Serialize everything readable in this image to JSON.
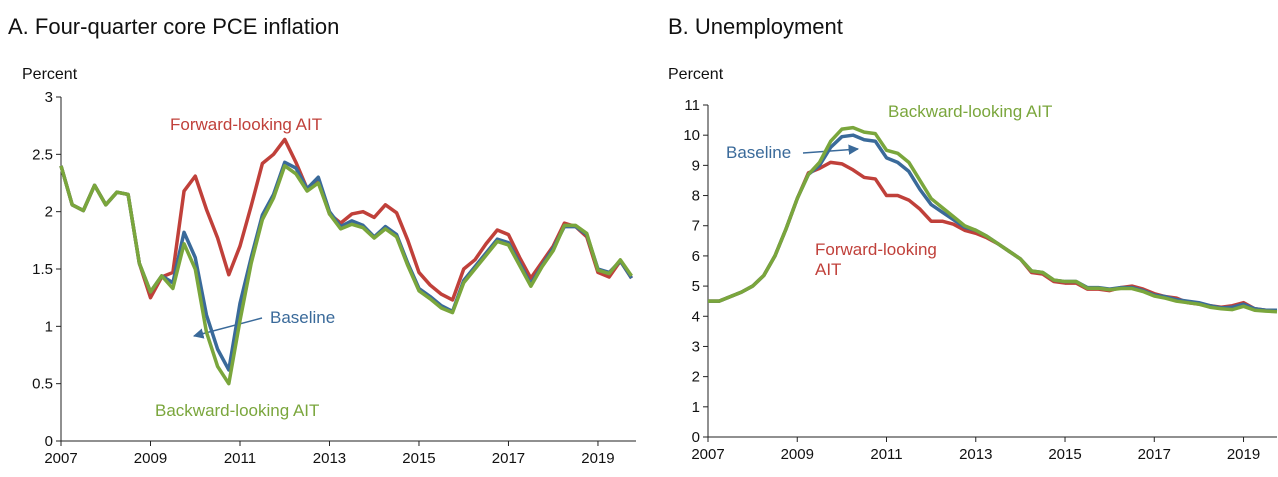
{
  "chart_data": [
    {
      "type": "line",
      "title": "A.  Four-quarter core PCE inflation",
      "ylabel": "Percent",
      "x": [
        2007,
        2007.25,
        2007.5,
        2007.75,
        2008,
        2008.25,
        2008.5,
        2008.75,
        2009,
        2009.25,
        2009.5,
        2009.75,
        2010,
        2010.25,
        2010.5,
        2010.75,
        2011,
        2011.25,
        2011.5,
        2011.75,
        2012,
        2012.25,
        2012.5,
        2012.75,
        2013,
        2013.25,
        2013.5,
        2013.75,
        2014,
        2014.25,
        2014.5,
        2014.75,
        2015,
        2015.25,
        2015.5,
        2015.75,
        2016,
        2016.25,
        2016.5,
        2016.75,
        2017,
        2017.25,
        2017.5,
        2017.75,
        2018,
        2018.25,
        2018.5,
        2018.75,
        2019,
        2019.25,
        2019.5,
        2019.75
      ],
      "xlim": [
        2007,
        2019.85
      ],
      "xticks": [
        2007,
        2009,
        2011,
        2013,
        2015,
        2017,
        2019
      ],
      "ylim": [
        0,
        3
      ],
      "yticks": [
        0,
        0.5,
        1,
        1.5,
        2,
        2.5,
        3
      ],
      "series": [
        {
          "name": "Forward-looking AIT",
          "color": "#c0403a",
          "values": [
            2.4,
            2.06,
            2.01,
            2.23,
            2.06,
            2.17,
            2.15,
            1.55,
            1.25,
            1.43,
            1.47,
            2.18,
            2.31,
            2.02,
            1.77,
            1.45,
            1.7,
            2.05,
            2.42,
            2.5,
            2.63,
            2.43,
            2.2,
            2.27,
            1.98,
            1.9,
            1.98,
            2.0,
            1.95,
            2.06,
            1.99,
            1.75,
            1.47,
            1.36,
            1.28,
            1.23,
            1.5,
            1.58,
            1.72,
            1.84,
            1.8,
            1.6,
            1.42,
            1.56,
            1.7,
            1.9,
            1.87,
            1.78,
            1.47,
            1.43,
            1.57,
            1.42
          ]
        },
        {
          "name": "Baseline",
          "color": "#3a6a9a",
          "values": [
            2.4,
            2.06,
            2.01,
            2.23,
            2.06,
            2.17,
            2.15,
            1.55,
            1.3,
            1.44,
            1.38,
            1.82,
            1.6,
            1.1,
            0.8,
            0.62,
            1.2,
            1.6,
            1.97,
            2.15,
            2.43,
            2.38,
            2.2,
            2.3,
            2.0,
            1.87,
            1.92,
            1.88,
            1.78,
            1.87,
            1.8,
            1.55,
            1.33,
            1.26,
            1.18,
            1.13,
            1.4,
            1.52,
            1.64,
            1.76,
            1.73,
            1.55,
            1.37,
            1.53,
            1.68,
            1.87,
            1.87,
            1.8,
            1.5,
            1.47,
            1.57,
            1.42
          ]
        },
        {
          "name": "Backward-looking AIT",
          "color": "#7aa63c",
          "values": [
            2.4,
            2.06,
            2.01,
            2.23,
            2.06,
            2.17,
            2.15,
            1.55,
            1.3,
            1.44,
            1.33,
            1.72,
            1.5,
            0.95,
            0.65,
            0.5,
            1.05,
            1.55,
            1.93,
            2.12,
            2.4,
            2.33,
            2.18,
            2.25,
            1.98,
            1.85,
            1.89,
            1.86,
            1.77,
            1.85,
            1.78,
            1.53,
            1.31,
            1.24,
            1.16,
            1.12,
            1.38,
            1.5,
            1.62,
            1.74,
            1.71,
            1.53,
            1.35,
            1.52,
            1.66,
            1.88,
            1.88,
            1.81,
            1.49,
            1.46,
            1.58,
            1.44
          ]
        }
      ]
    },
    {
      "type": "line",
      "title": "B. Unemployment",
      "ylabel": "Percent",
      "x": [
        2007,
        2007.25,
        2007.5,
        2007.75,
        2008,
        2008.25,
        2008.5,
        2008.75,
        2009,
        2009.25,
        2009.5,
        2009.75,
        2010,
        2010.25,
        2010.5,
        2010.75,
        2011,
        2011.25,
        2011.5,
        2011.75,
        2012,
        2012.25,
        2012.5,
        2012.75,
        2013,
        2013.25,
        2013.5,
        2013.75,
        2014,
        2014.25,
        2014.5,
        2014.75,
        2015,
        2015.25,
        2015.5,
        2015.75,
        2016,
        2016.25,
        2016.5,
        2016.75,
        2017,
        2017.25,
        2017.5,
        2017.75,
        2018,
        2018.25,
        2018.5,
        2018.75,
        2019,
        2019.25,
        2019.5,
        2019.75
      ],
      "xlim": [
        2007,
        2019.75
      ],
      "xticks": [
        2007,
        2009,
        2011,
        2013,
        2015,
        2017,
        2019
      ],
      "ylim": [
        0,
        11
      ],
      "yticks": [
        0,
        1,
        2,
        3,
        4,
        5,
        6,
        7,
        8,
        9,
        10,
        11
      ],
      "series": [
        {
          "name": "Forward-looking AIT",
          "color": "#c0403a",
          "values": [
            4.5,
            4.5,
            4.65,
            4.8,
            5.0,
            5.35,
            6.0,
            6.9,
            7.9,
            8.75,
            8.9,
            9.1,
            9.05,
            8.85,
            8.6,
            8.55,
            8.0,
            8.0,
            7.85,
            7.55,
            7.15,
            7.15,
            7.05,
            6.85,
            6.75,
            6.6,
            6.4,
            6.15,
            5.9,
            5.45,
            5.4,
            5.15,
            5.1,
            5.1,
            4.9,
            4.9,
            4.85,
            4.95,
            5.0,
            4.9,
            4.75,
            4.65,
            4.6,
            4.45,
            4.4,
            4.35,
            4.3,
            4.35,
            4.45,
            4.25,
            4.2,
            4.2
          ]
        },
        {
          "name": "Baseline",
          "color": "#3a6a9a",
          "values": [
            4.5,
            4.5,
            4.65,
            4.8,
            5.0,
            5.35,
            6.0,
            6.9,
            7.9,
            8.7,
            9.0,
            9.6,
            9.95,
            10.0,
            9.85,
            9.8,
            9.25,
            9.1,
            8.8,
            8.2,
            7.7,
            7.45,
            7.2,
            6.95,
            6.85,
            6.65,
            6.4,
            6.15,
            5.9,
            5.5,
            5.45,
            5.2,
            5.15,
            5.15,
            4.95,
            4.95,
            4.9,
            4.95,
            4.95,
            4.85,
            4.7,
            4.65,
            4.55,
            4.5,
            4.45,
            4.35,
            4.28,
            4.3,
            4.4,
            4.25,
            4.2,
            4.2
          ]
        },
        {
          "name": "Backward-looking AIT",
          "color": "#7aa63c",
          "values": [
            4.5,
            4.5,
            4.65,
            4.8,
            5.0,
            5.35,
            6.0,
            6.9,
            7.9,
            8.7,
            9.1,
            9.8,
            10.2,
            10.25,
            10.1,
            10.05,
            9.5,
            9.4,
            9.1,
            8.5,
            7.9,
            7.6,
            7.3,
            7.0,
            6.85,
            6.65,
            6.4,
            6.15,
            5.9,
            5.5,
            5.45,
            5.2,
            5.15,
            5.15,
            4.93,
            4.93,
            4.88,
            4.92,
            4.92,
            4.82,
            4.67,
            4.6,
            4.5,
            4.45,
            4.4,
            4.3,
            4.25,
            4.22,
            4.33,
            4.2,
            4.17,
            4.15
          ]
        }
      ]
    }
  ]
}
